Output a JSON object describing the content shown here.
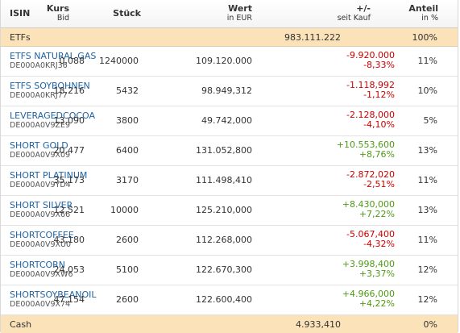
{
  "header": {
    "isin": "ISIN",
    "kurs": "Kurs",
    "bid": "Bid",
    "stueck": "Stück",
    "wert": "Wert",
    "in_eur": "in EUR",
    "plusminus": "+/-",
    "seit_kauf": "seit Kauf",
    "anteil": "Anteil",
    "in_pct": "in %"
  },
  "etfs": {
    "label": "ETFs",
    "wert": "983.111.222",
    "anteil": "100%"
  },
  "rows": [
    {
      "name": "ETFS NATURAL GAS",
      "isin": "DE000A0KRJ36",
      "bid": "0,088",
      "stueck": "1240000",
      "wert": "109.120.000",
      "chg_abs": "-9.920.000",
      "chg_pct": "-8,33%",
      "sign": "neg",
      "anteil": "11%"
    },
    {
      "name": "ETFS SOYBOHNEN",
      "isin": "DE000A0KRJ77",
      "bid": "18,216",
      "stueck": "5432",
      "wert": "98.949,312",
      "chg_abs": "-1.118,992",
      "chg_pct": "-1,12%",
      "sign": "neg",
      "anteil": "10%"
    },
    {
      "name": "LEVERAGEDCOCOA",
      "isin": "DE000A0V9ZE9",
      "bid": "13,090",
      "stueck": "3800",
      "wert": "49.742,000",
      "chg_abs": "-2.128,000",
      "chg_pct": "-4,10%",
      "sign": "neg",
      "anteil": "5%"
    },
    {
      "name": "SHORT GOLD",
      "isin": "DE000A0V9X09",
      "bid": "20,477",
      "stueck": "6400",
      "wert": "131.052,800",
      "chg_abs": "+10.553,600",
      "chg_pct": "+8,76%",
      "sign": "pos",
      "anteil": "13%"
    },
    {
      "name": "SHORT PLATINUM",
      "isin": "DE000A0V9YD4",
      "bid": "35,173",
      "stueck": "3170",
      "wert": "111.498,410",
      "chg_abs": "-2.872,020",
      "chg_pct": "-2,51%",
      "sign": "neg",
      "anteil": "11%"
    },
    {
      "name": "SHORT SILVER",
      "isin": "DE000A0V9X66",
      "bid": "12,521",
      "stueck": "10000",
      "wert": "125.210,000",
      "chg_abs": "+8.430,000",
      "chg_pct": "+7,22%",
      "sign": "pos",
      "anteil": "13%"
    },
    {
      "name": "SHORTCOFFEE",
      "isin": "DE000A0V9XU0",
      "bid": "43,180",
      "stueck": "2600",
      "wert": "112.268,000",
      "chg_abs": "-5.067,400",
      "chg_pct": "-4,32%",
      "sign": "neg",
      "anteil": "11%"
    },
    {
      "name": "SHORTCORN",
      "isin": "DE000A0V9XW6",
      "bid": "24,053",
      "stueck": "5100",
      "wert": "122.670,300",
      "chg_abs": "+3.998,400",
      "chg_pct": "+3,37%",
      "sign": "pos",
      "anteil": "12%"
    },
    {
      "name": "SHORTSOYBEANOIL",
      "isin": "DE000A0V9X74",
      "bid": "47,154",
      "stueck": "2600",
      "wert": "122.600,400",
      "chg_abs": "+4.966,000",
      "chg_pct": "+4,22%",
      "sign": "pos",
      "anteil": "12%"
    }
  ],
  "cash": {
    "label": "Cash",
    "wert": "4.933,410",
    "anteil": "0%"
  },
  "colors": {
    "band": "#fbe2b8",
    "link": "#1f63a3",
    "negative": "#cc0000",
    "positive": "#4d9a14"
  }
}
